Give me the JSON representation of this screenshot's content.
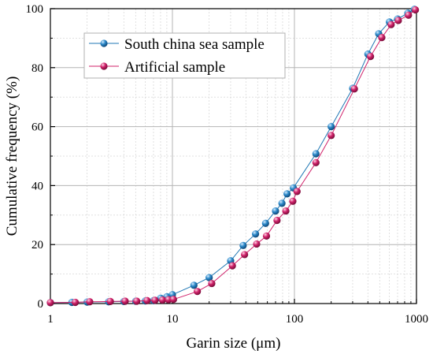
{
  "chart_data": {
    "type": "scatter",
    "xlabel": "Garin size (μm)",
    "ylabel": "Cumulative frequency (%)",
    "xscale": "log",
    "xlim": [
      1,
      1000
    ],
    "ylim": [
      0,
      100
    ],
    "grid": true,
    "legend_position": "top-left",
    "x_ticks": [
      {
        "value": 1,
        "label": "1"
      },
      {
        "value": 10,
        "label": "10"
      },
      {
        "value": 100,
        "label": "100"
      },
      {
        "value": 1000,
        "label": "1000"
      }
    ],
    "y_ticks": [
      {
        "value": 0,
        "label": "0"
      },
      {
        "value": 20,
        "label": "20"
      },
      {
        "value": 40,
        "label": "40"
      },
      {
        "value": 60,
        "label": "60"
      },
      {
        "value": 80,
        "label": "80"
      },
      {
        "value": 100,
        "label": "100"
      }
    ],
    "series": [
      {
        "name": "South china sea sample",
        "color": "#1f77b4",
        "points": [
          [
            1,
            0.3
          ],
          [
            1.5,
            0.4
          ],
          [
            2,
            0.5
          ],
          [
            3,
            0.6
          ],
          [
            4,
            0.7
          ],
          [
            5,
            0.8
          ],
          [
            6,
            0.9
          ],
          [
            7,
            1.0
          ],
          [
            8,
            1.8
          ],
          [
            9,
            2.3
          ],
          [
            10,
            3.0
          ],
          [
            15,
            6.2
          ],
          [
            20,
            8.8
          ],
          [
            30,
            14.5
          ],
          [
            38,
            19.7
          ],
          [
            48,
            23.6
          ],
          [
            58,
            27.2
          ],
          [
            70,
            31.4
          ],
          [
            79,
            34.0
          ],
          [
            87,
            37.2
          ],
          [
            98,
            39.2
          ],
          [
            150,
            50.8
          ],
          [
            200,
            60.0
          ],
          [
            300,
            73.0
          ],
          [
            400,
            84.6
          ],
          [
            490,
            91.5
          ],
          [
            600,
            95.5
          ],
          [
            700,
            96.5
          ],
          [
            850,
            98.5
          ],
          [
            960,
            99.8
          ]
        ]
      },
      {
        "name": "Artificial sample",
        "color": "#d0216a",
        "points": [
          [
            1,
            0.3
          ],
          [
            1.6,
            0.4
          ],
          [
            2.1,
            0.6
          ],
          [
            3.1,
            0.7
          ],
          [
            4.1,
            0.8
          ],
          [
            5.1,
            0.8
          ],
          [
            6.2,
            1.0
          ],
          [
            7.2,
            1.1
          ],
          [
            8.3,
            1.2
          ],
          [
            9.3,
            1.3
          ],
          [
            10.2,
            1.4
          ],
          [
            16,
            4.1
          ],
          [
            21,
            6.8
          ],
          [
            31,
            12.8
          ],
          [
            39,
            16.6
          ],
          [
            49,
            20.2
          ],
          [
            59,
            22.9
          ],
          [
            72,
            28.2
          ],
          [
            85,
            31.4
          ],
          [
            97,
            34.7
          ],
          [
            105,
            38.0
          ],
          [
            150,
            47.8
          ],
          [
            200,
            57.0
          ],
          [
            310,
            72.8
          ],
          [
            420,
            83.8
          ],
          [
            520,
            90.2
          ],
          [
            620,
            94.6
          ],
          [
            710,
            96.0
          ],
          [
            860,
            97.8
          ],
          [
            980,
            99.6
          ]
        ]
      }
    ]
  }
}
